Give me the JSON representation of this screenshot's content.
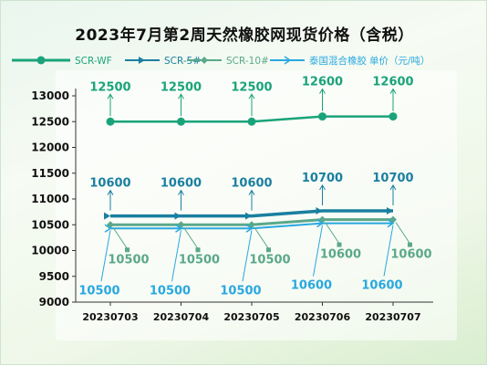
{
  "title": "2023年7月第2周天然橡胶网现货价格（含税）",
  "chart_data": {
    "type": "line",
    "categories": [
      "20230703",
      "20230704",
      "20230705",
      "20230706",
      "20230707"
    ],
    "series": [
      {
        "name": "SCR-WF",
        "values": [
          12500,
          12500,
          12500,
          12600,
          12600
        ],
        "color": "#1aa37a",
        "marker": "circle"
      },
      {
        "name": "SCR-5#",
        "values": [
          10600,
          10600,
          10600,
          10700,
          10700
        ],
        "color": "#1a7fa0",
        "marker": "triangle"
      },
      {
        "name": "SCR-10#",
        "values": [
          10500,
          10500,
          10500,
          10600,
          10600
        ],
        "color": "#5aa88a",
        "marker": "diamond"
      },
      {
        "name": "泰国混合橡胶",
        "values": [
          10500,
          10500,
          10500,
          10600,
          10600
        ],
        "color": "#29a8e0",
        "marker": "arrow"
      }
    ],
    "unit_label": "单价（元/吨）",
    "y_ticks": [
      9000,
      9500,
      10000,
      10500,
      11000,
      11500,
      12000,
      12500,
      13000
    ],
    "ylim": [
      9000,
      13000
    ],
    "legend_position": "top",
    "grid": false,
    "data_labels": true
  }
}
